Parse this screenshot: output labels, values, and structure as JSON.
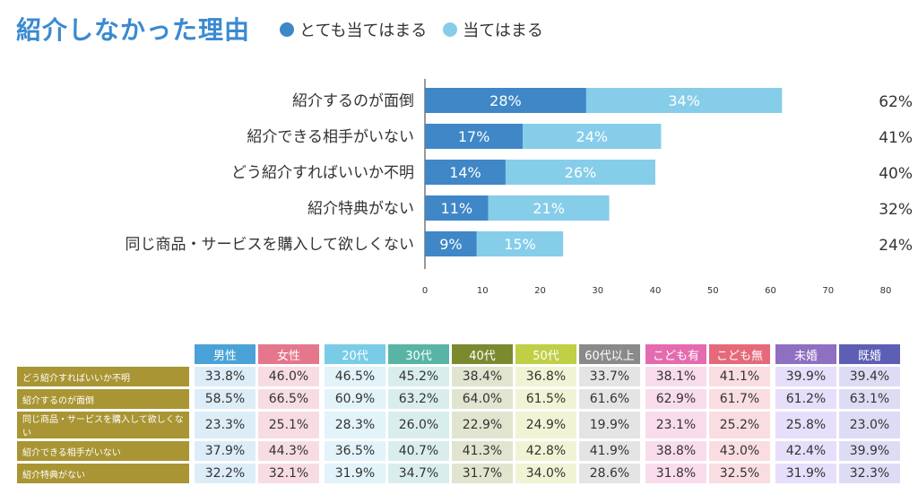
{
  "title": "紹介しなかった理由",
  "legend": [
    {
      "label": "とても当てはまる",
      "color": "#3f87c7"
    },
    {
      "label": "当てはまる",
      "color": "#86cdea"
    }
  ],
  "chart_data": {
    "type": "bar",
    "orientation": "horizontal",
    "stacked": true,
    "categories": [
      "紹介するのが面倒",
      "紹介できる相手がいない",
      "どう紹介すればいいか不明",
      "紹介特典がない",
      "同じ商品・サービスを購入して欲しくない"
    ],
    "series": [
      {
        "name": "とても当てはまる",
        "values": [
          28,
          17,
          14,
          11,
          9
        ],
        "color": "#3f87c7"
      },
      {
        "name": "当てはまる",
        "values": [
          34,
          24,
          26,
          21,
          15
        ],
        "color": "#86cdea"
      }
    ],
    "totals": [
      62,
      41,
      40,
      32,
      24
    ],
    "unit": "%",
    "xlim": [
      0,
      80
    ],
    "xticks": [
      0,
      10,
      20,
      30,
      40,
      50,
      60,
      70,
      80
    ]
  },
  "table": {
    "groups": [
      {
        "headers": [
          "男性",
          "女性"
        ],
        "header_colors": [
          "#4aa3d8",
          "#e5778d"
        ],
        "cell_colors": [
          "#dcedf8",
          "#f7dde3"
        ],
        "border": "#4aa3d8"
      },
      {
        "headers": [
          "20代",
          "30代",
          "40代",
          "50代",
          "60代以上"
        ],
        "header_colors": [
          "#79cce8",
          "#58b5a6",
          "#7b8a2f",
          "#c0cf45",
          "#8a8a8a"
        ],
        "cell_colors": [
          "#e2f3f9",
          "#d9eeec",
          "#e1e4cf",
          "#f1f4d4",
          "#e4e4e4"
        ],
        "border": "#79cce8"
      },
      {
        "headers": [
          "こども有",
          "こども無"
        ],
        "header_colors": [
          "#e56bb0",
          "#e5697a"
        ],
        "cell_colors": [
          "#f9dcec",
          "#f9dde1"
        ],
        "border": "#e56bb0"
      },
      {
        "headers": [
          "未婚",
          "既婚"
        ],
        "header_colors": [
          "#8e6fc1",
          "#5d5fb5"
        ],
        "cell_colors": [
          "#e6defa",
          "#dddcf5"
        ],
        "border": "#5d5fb5"
      }
    ],
    "rows": [
      {
        "label": "どう紹介すればいいか不明",
        "values": [
          "33.8%",
          "46.0%",
          "46.5%",
          "45.2%",
          "38.4%",
          "36.8%",
          "33.7%",
          "38.1%",
          "41.1%",
          "39.9%",
          "39.4%"
        ]
      },
      {
        "label": "紹介するのが面倒",
        "values": [
          "58.5%",
          "66.5%",
          "60.9%",
          "63.2%",
          "64.0%",
          "61.5%",
          "61.6%",
          "62.9%",
          "61.7%",
          "61.2%",
          "63.1%"
        ]
      },
      {
        "label": "同じ商品・サービスを購入して欲しくない",
        "values": [
          "23.3%",
          "25.1%",
          "28.3%",
          "26.0%",
          "22.9%",
          "24.9%",
          "19.9%",
          "23.1%",
          "25.2%",
          "25.8%",
          "23.0%"
        ]
      },
      {
        "label": "紹介できる相手がいない",
        "values": [
          "37.9%",
          "44.3%",
          "36.5%",
          "40.7%",
          "41.3%",
          "42.8%",
          "41.9%",
          "38.8%",
          "43.0%",
          "42.4%",
          "39.9%"
        ]
      },
      {
        "label": "紹介特典がない",
        "values": [
          "32.2%",
          "32.1%",
          "31.9%",
          "34.7%",
          "31.7%",
          "34.0%",
          "28.6%",
          "31.8%",
          "32.5%",
          "31.9%",
          "32.3%"
        ]
      }
    ]
  }
}
